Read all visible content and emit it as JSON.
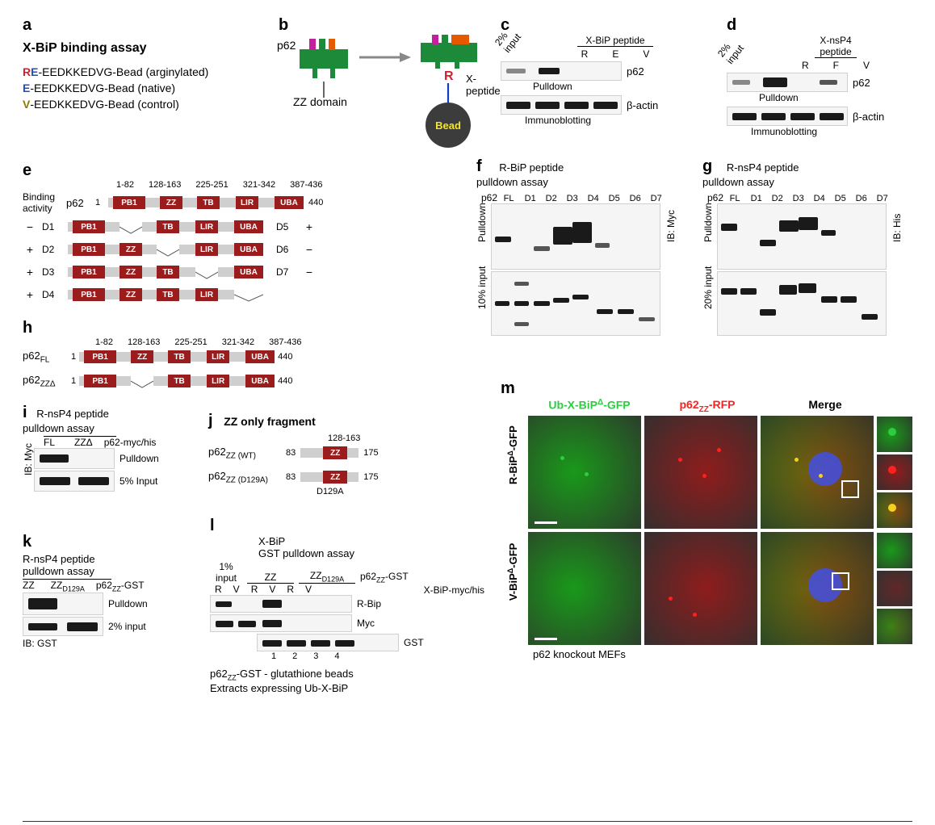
{
  "panel_a": {
    "label": "a",
    "title": "X-BiP binding assay",
    "peptides": [
      {
        "prefix_R": "R",
        "prefix_E": "E",
        "seq": "-EEDKKEDVG-Bead (arginylated)",
        "color_R": "#d02030",
        "color_E": "#2050c0"
      },
      {
        "prefix_E": "E",
        "seq": "-EEDKKEDVG-Bead (native)",
        "color_E": "#2050c0"
      },
      {
        "prefix_V": "V",
        "seq": "-EEDKKEDVG-Bead (control)",
        "color_V": "#8a7a00"
      }
    ]
  },
  "panel_b": {
    "label": "b",
    "p62": "p62",
    "zz_label": "ZZ domain",
    "x_peptide": "X-peptide",
    "bead": "Bead",
    "colors": {
      "p62_body": "#1d8a3a",
      "nrec": "#c41f9c",
      "arm": "#e55a00",
      "r": "#d02030",
      "bead": "#3c3c3c",
      "bead_text": "#f4e52a"
    }
  },
  "panel_c": {
    "label": "c",
    "input": "2%\ninput",
    "header": "X-BiP peptide",
    "lanes": [
      "R",
      "E",
      "V"
    ],
    "row1": "p62",
    "pulldown": "Pulldown",
    "row2": "β-actin",
    "ib": "Immunoblotting"
  },
  "panel_d": {
    "label": "d",
    "input": "2%\ninput",
    "header": "X-nsP4\npeptide",
    "lanes": [
      "R",
      "F",
      "V"
    ],
    "row1": "p62",
    "pulldown": "Pulldown",
    "row2": "β-actin",
    "ib": "Immunoblotting"
  },
  "panel_e": {
    "label": "e",
    "ranges": [
      "1-82",
      "128-163",
      "225-251",
      "321-342",
      "387-436"
    ],
    "binding_label": "Binding\nactivity",
    "row_p62": "p62",
    "aa_start": "1",
    "aa_end": "440",
    "domains": [
      {
        "id": "PB1",
        "w": 40,
        "c": "#9b1c1c"
      },
      {
        "id": "ZZ",
        "w": 28,
        "c": "#9b1c1c"
      },
      {
        "id": "TB",
        "w": 28,
        "c": "#9b1c1c"
      },
      {
        "id": "LIR",
        "w": 28,
        "c": "#9b1c1c"
      },
      {
        "id": "UBA",
        "w": 36,
        "c": "#9b1c1c"
      }
    ],
    "matrix": [
      {
        "id": "D1",
        "binding": "−",
        "has": [
          true,
          false,
          true,
          true,
          true
        ],
        "right_id": "D5",
        "right_binding": "+",
        "right_has": [
          true,
          true,
          true,
          true,
          true
        ]
      },
      {
        "id": "D2",
        "binding": "+",
        "has": [
          true,
          true,
          false,
          true,
          true
        ],
        "right_id": "D6",
        "right_binding": "−",
        "right_has": [
          true,
          true,
          true,
          true,
          false
        ]
      },
      {
        "id": "D3",
        "binding": "+",
        "has": [
          true,
          true,
          true,
          false,
          true
        ],
        "right_id": "D7",
        "right_binding": "−",
        "right_has": [
          true,
          true,
          true,
          true,
          false
        ]
      },
      {
        "id": "D4",
        "binding": "+",
        "has": [
          true,
          true,
          true,
          true,
          false
        ],
        "right_id": "",
        "right_binding": "",
        "right_has": []
      }
    ]
  },
  "panel_f": {
    "label": "f",
    "title": "R-BiP peptide\npulldown assay",
    "p62": "p62",
    "lanes": [
      "FL",
      "D1",
      "D2",
      "D3",
      "D4",
      "D5",
      "D6",
      "D7"
    ],
    "row_pulldown": "Pulldown",
    "row_input": "10% input",
    "ib": "IB: Myc"
  },
  "panel_g": {
    "label": "g",
    "title": "R-nsP4 peptide\npulldown assay",
    "p62": "p62",
    "lanes": [
      "FL",
      "D1",
      "D2",
      "D3",
      "D4",
      "D5",
      "D6",
      "D7"
    ],
    "row_pulldown": "Pulldown",
    "row_input": "20% input",
    "ib": "IB: His"
  },
  "panel_h": {
    "label": "h",
    "ranges": [
      "1-82",
      "128-163",
      "225-251",
      "321-342",
      "387-436"
    ],
    "fl": "p62",
    "zzdel": "p62",
    "sub_fl": "FL",
    "sub_del": "ZZΔ",
    "aa_start": "1",
    "aa_end": "440"
  },
  "panel_i": {
    "label": "i",
    "title": "R-nsP4 peptide\npulldown assay",
    "lanes": [
      "FL",
      "ZZΔ"
    ],
    "ylabel": "p62-myc/his",
    "row1": "Pulldown",
    "row2": "5% Input",
    "ib": "IB: Myc"
  },
  "panel_j": {
    "label": "j",
    "title": "ZZ only fragment",
    "range": "128-163",
    "wt": "p62",
    "wt_sub": "ZZ (WT)",
    "da": "p62",
    "da_sub": "ZZ (D129A)",
    "aa_start": "83",
    "aa_end": "175",
    "d129a": "D129A",
    "zz": "ZZ"
  },
  "panel_k": {
    "label": "k",
    "title": "R-nsP4 peptide\npulldown assay",
    "lanes": [
      "ZZ",
      "ZZ"
    ],
    "lane2_sub": "D129A",
    "ylabel": "p62",
    "ylabel_sub": "ZZ",
    "ylabel_after": "-GST",
    "row1": "Pulldown",
    "row2": "2% input",
    "ib": "IB: GST"
  },
  "panel_l": {
    "label": "l",
    "header_top": "X-BiP\nGST pulldown assay",
    "col1": "1%\ninput",
    "col2": "ZZ",
    "col3": "ZZ",
    "col3_sub": "D129A",
    "ylabel": "p62",
    "ylabel_sub": "ZZ",
    "ylabel_after": "-GST",
    "rv": [
      "R",
      "V",
      "R",
      "V",
      "R",
      "V"
    ],
    "xbip": "X-BiP-myc/his",
    "row1": "R-Bip",
    "row2": "Myc",
    "row3": "GST",
    "lane_nums": [
      "1",
      "2",
      "3",
      "4"
    ],
    "note1": "p62",
    "note1_sub": "ZZ",
    "note1_after": "-GST - glutathione beads",
    "note2": "Extracts expressing Ub-X-BiP"
  },
  "panel_m": {
    "label": "m",
    "col1": "Ub-X-BiP",
    "col1_sup": "Δ",
    "col1_after": "-GFP",
    "col2": "p62",
    "col2_sub": "ZZ",
    "col2_after": "-RFP",
    "col3": "Merge",
    "row1": "R-BiP",
    "row1_sup": "Δ",
    "row1_after": "-GFP",
    "row2": "V-BiP",
    "row2_sup": "Δ",
    "row2_after": "-GFP",
    "footer": "p62 knockout MEFs",
    "colors": {
      "green": "#2ecc40",
      "red": "#ff2020",
      "yellow": "#f5d020"
    }
  }
}
